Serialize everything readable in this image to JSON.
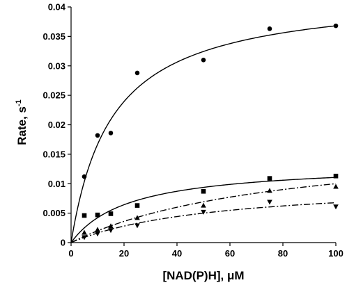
{
  "chart_data": {
    "type": "scatter",
    "xlabel": "[NAD(P)H], μM",
    "ylabel_main": "Rate, s",
    "ylabel_sup": "-1",
    "xlim": [
      0,
      100
    ],
    "ylim": [
      0,
      0.04
    ],
    "x_ticks": [
      0,
      20,
      40,
      60,
      80,
      100
    ],
    "y_ticks": [
      0,
      0.005,
      0.01,
      0.015,
      0.02,
      0.025,
      0.03,
      0.035,
      0.04
    ],
    "x_tick_labels": [
      "0",
      "20",
      "40",
      "60",
      "80",
      "100"
    ],
    "y_tick_labels": [
      "0",
      "0.005",
      "0.01",
      "0.015",
      "0.02",
      "0.025",
      "0.03",
      "0.035",
      "0.04"
    ],
    "grid": false,
    "series": [
      {
        "marker": "circle",
        "line_style": "solid",
        "x": [
          5,
          10,
          15,
          25,
          50,
          75,
          100
        ],
        "y": [
          0.0112,
          0.0182,
          0.0186,
          0.0288,
          0.031,
          0.0363,
          0.0368
        ],
        "fit": {
          "vmax": 0.0425,
          "km": 15.5
        }
      },
      {
        "marker": "square",
        "line_style": "solid",
        "x": [
          5,
          10,
          15,
          25,
          50,
          75,
          100
        ],
        "y": [
          0.0046,
          0.0047,
          0.0049,
          0.0063,
          0.0087,
          0.0109,
          0.0113
        ],
        "fit": {
          "vmax": 0.0135,
          "km": 22
        }
      },
      {
        "marker": "triangle-up",
        "line_style": "dash-dot",
        "x": [
          5,
          10,
          15,
          25,
          50,
          75,
          100
        ],
        "y": [
          0.0017,
          0.0022,
          0.0028,
          0.0042,
          0.0063,
          0.0088,
          0.0095
        ],
        "fit": {
          "vmax": 0.018,
          "km": 80
        }
      },
      {
        "marker": "triangle-down",
        "line_style": "dash-dot",
        "x": [
          5,
          10,
          15,
          25,
          50,
          75,
          100
        ],
        "y": [
          0.0009,
          0.0015,
          0.0021,
          0.0029,
          0.0052,
          0.0069,
          0.0061
        ],
        "fit": {
          "vmax": 0.0105,
          "km": 55
        }
      }
    ]
  }
}
